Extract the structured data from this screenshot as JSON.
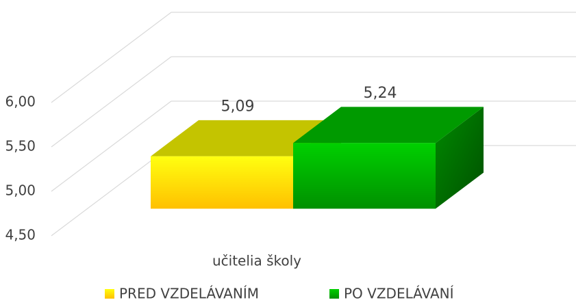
{
  "chart_data": {
    "type": "bar3d",
    "categories": [
      "učitelia školy"
    ],
    "series": [
      {
        "name": "PRED VZDELÁVANÍM",
        "color": "#ffd700",
        "values": [
          5.09
        ],
        "value_labels": [
          "5,09"
        ]
      },
      {
        "name": "PO VZDELÁVANÍ",
        "color": "#00aa00",
        "values": [
          5.24
        ],
        "value_labels": [
          "5,24"
        ]
      }
    ],
    "ylim": [
      4.5,
      6.0
    ],
    "yticks": [
      {
        "value": 4.5,
        "label": "4,50"
      },
      {
        "value": 5.0,
        "label": "5,00"
      },
      {
        "value": 5.5,
        "label": "5,50"
      },
      {
        "value": 6.0,
        "label": "6,00"
      }
    ],
    "grid": true
  }
}
